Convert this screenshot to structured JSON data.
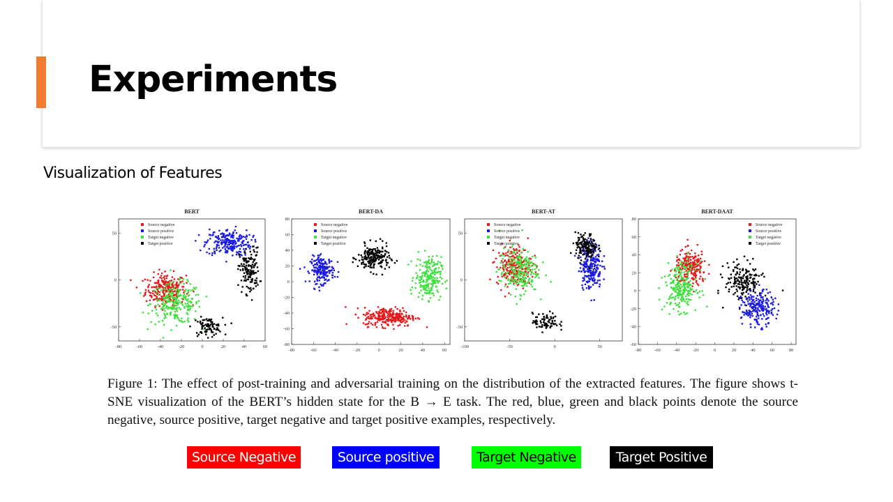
{
  "slide": {
    "title": "Experiments",
    "subtitle": "Visualization of Features",
    "accent_color": "#ee7d31"
  },
  "figure": {
    "caption": "Figure 1:  The effect of post-training and adversarial training on the distribution of the extracted features.  The figure shows t-SNE visualization of the BERT’s hidden state for the B → E task. The red, blue, green and black points denote the source negative, source positive, target negative and target positive examples, respectively."
  },
  "legend_chips": [
    {
      "label": "Source Negative",
      "color": "#ff0000"
    },
    {
      "label": "Source positive",
      "color": "#0000ff"
    },
    {
      "label": "Target Negative",
      "color": "#00ff00"
    },
    {
      "label": "Target Positive",
      "color": "#000000"
    }
  ],
  "chart_data": [
    {
      "type": "scatter",
      "title": "BERT",
      "xlim": [
        -80,
        60
      ],
      "ylim": [
        -65,
        65
      ],
      "xticks": [
        -80,
        -60,
        -40,
        -20,
        0,
        20,
        40,
        60
      ],
      "yticks": [
        50,
        0,
        -50
      ],
      "legend": [
        "Source negative",
        "Source positive",
        "Target negative",
        "Target positive"
      ],
      "legend_position": "top-left",
      "clusters": [
        {
          "series": "Source negative",
          "color": "#e41a1c",
          "cx": -35,
          "cy": -10,
          "sx": 16,
          "sy": 14,
          "n": 260
        },
        {
          "series": "Target negative",
          "color": "#3ee03e",
          "cx": -25,
          "cy": -25,
          "sx": 20,
          "sy": 18,
          "n": 240
        },
        {
          "series": "Target positive",
          "color": "#000000",
          "cx": 5,
          "cy": -50,
          "sx": 12,
          "sy": 8,
          "n": 90
        },
        {
          "series": "Source positive",
          "color": "#1a1ae0",
          "cx": 25,
          "cy": 40,
          "sx": 18,
          "sy": 12,
          "n": 230
        },
        {
          "series": "Target positive",
          "color": "#000000",
          "cx": 45,
          "cy": 10,
          "sx": 8,
          "sy": 20,
          "n": 150
        }
      ]
    },
    {
      "type": "scatter",
      "title": "BERT-DA",
      "xlim": [
        -80,
        65
      ],
      "ylim": [
        -80,
        80
      ],
      "xticks": [
        -80,
        -60,
        -40,
        -20,
        0,
        20,
        40,
        60
      ],
      "yticks": [
        80,
        60,
        40,
        20,
        0,
        -20,
        -40,
        -60,
        -80
      ],
      "legend": [
        "Source negative",
        "Source positive",
        "Target negative",
        "Target positive"
      ],
      "legend_position": "top-left",
      "clusters": [
        {
          "series": "Source positive",
          "color": "#1a1ae0",
          "cx": -52,
          "cy": 15,
          "sx": 9,
          "sy": 14,
          "n": 200
        },
        {
          "series": "Target positive",
          "color": "#000000",
          "cx": -5,
          "cy": 30,
          "sx": 12,
          "sy": 14,
          "n": 200
        },
        {
          "series": "Target negative",
          "color": "#3ee03e",
          "cx": 45,
          "cy": 5,
          "sx": 10,
          "sy": 22,
          "n": 220
        },
        {
          "series": "Source negative",
          "color": "#e41a1c",
          "cx": 10,
          "cy": -45,
          "sx": 20,
          "sy": 10,
          "n": 260
        }
      ]
    },
    {
      "type": "scatter",
      "title": "BERT-AT",
      "xlim": [
        -100,
        75
      ],
      "ylim": [
        -65,
        65
      ],
      "xticks": [
        -100,
        -50,
        0,
        50
      ],
      "yticks": [
        50,
        0,
        -50
      ],
      "legend": [
        "Source negative",
        "Source positive",
        "Target negative",
        "Target positive"
      ],
      "legend_position": "top-left",
      "clusters": [
        {
          "series": "Source negative",
          "color": "#e41a1c",
          "cx": -45,
          "cy": 15,
          "sx": 16,
          "sy": 18,
          "n": 230
        },
        {
          "series": "Target negative",
          "color": "#3ee03e",
          "cx": -40,
          "cy": 10,
          "sx": 18,
          "sy": 20,
          "n": 220
        },
        {
          "series": "Target positive",
          "color": "#000000",
          "cx": -10,
          "cy": -45,
          "sx": 12,
          "sy": 8,
          "n": 80
        },
        {
          "series": "Source positive",
          "color": "#1a1ae0",
          "cx": 40,
          "cy": 15,
          "sx": 10,
          "sy": 20,
          "n": 230
        },
        {
          "series": "Target positive",
          "color": "#000000",
          "cx": 35,
          "cy": 35,
          "sx": 10,
          "sy": 12,
          "n": 150
        }
      ]
    },
    {
      "type": "scatter",
      "title": "BERT-DAAT",
      "xlim": [
        -80,
        85
      ],
      "ylim": [
        -60,
        80
      ],
      "xticks": [
        -80,
        -60,
        -40,
        -20,
        0,
        20,
        40,
        60,
        80
      ],
      "yticks": [
        80,
        60,
        40,
        20,
        0,
        -20,
        -40,
        -60
      ],
      "legend": [
        "Source negative",
        "Source positive",
        "Target negative",
        "Target positive"
      ],
      "legend_position": "top-right",
      "clusters": [
        {
          "series": "Source negative",
          "color": "#e41a1c",
          "cx": -25,
          "cy": 25,
          "sx": 14,
          "sy": 16,
          "n": 220
        },
        {
          "series": "Target negative",
          "color": "#3ee03e",
          "cx": -35,
          "cy": 5,
          "sx": 14,
          "sy": 22,
          "n": 230
        },
        {
          "series": "Target positive",
          "color": "#000000",
          "cx": 30,
          "cy": 10,
          "sx": 16,
          "sy": 18,
          "n": 180
        },
        {
          "series": "Source positive",
          "color": "#1a1ae0",
          "cx": 45,
          "cy": -20,
          "sx": 14,
          "sy": 16,
          "n": 220
        }
      ]
    }
  ]
}
